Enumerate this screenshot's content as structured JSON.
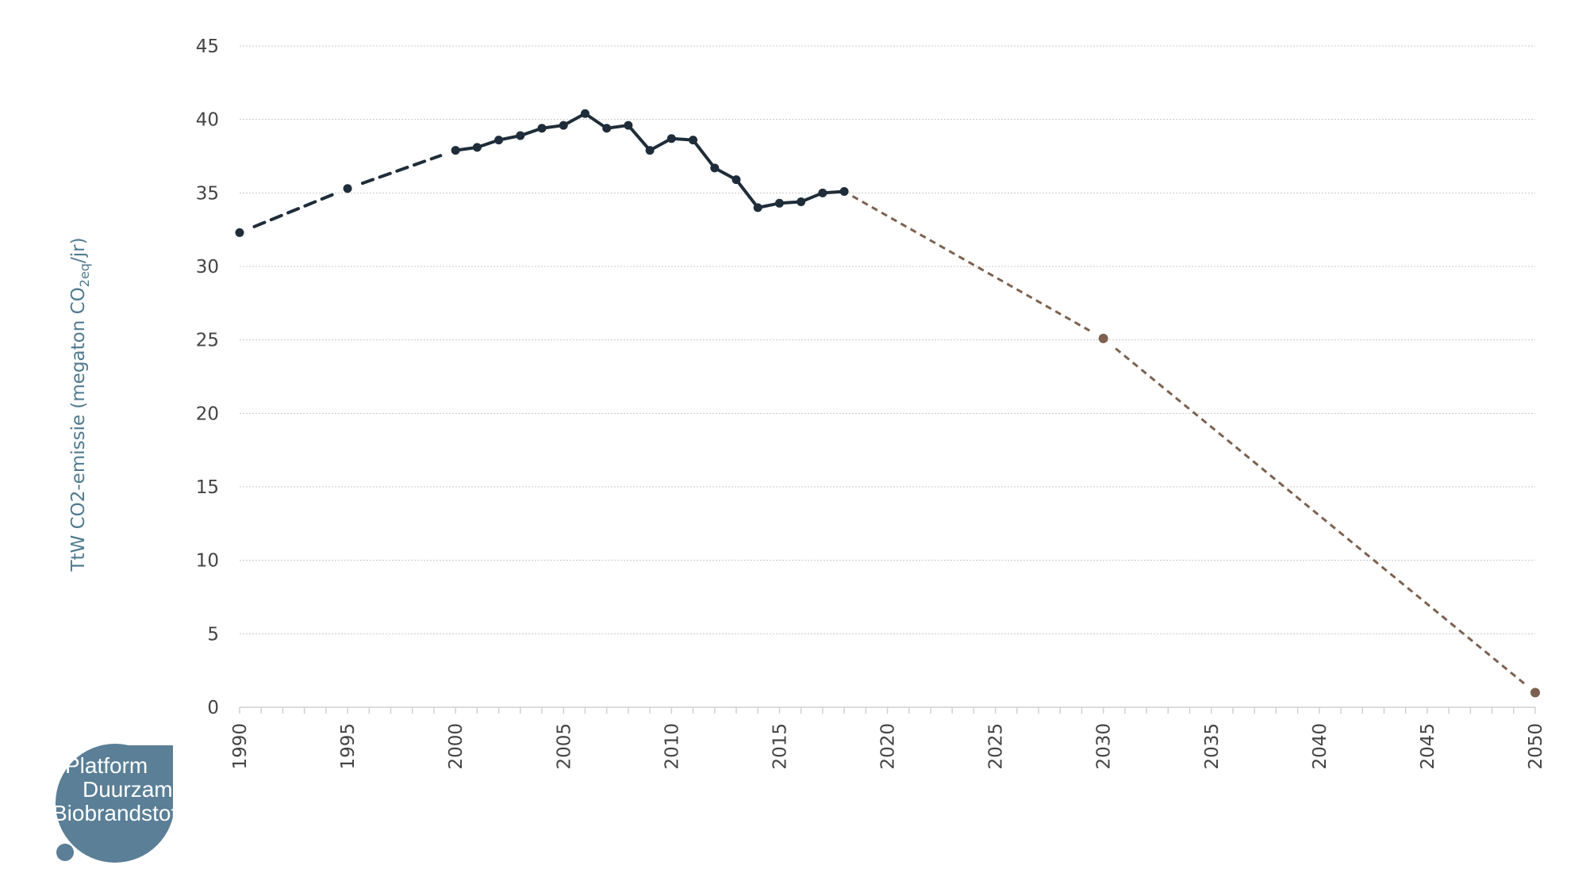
{
  "chart_data": {
    "type": "line",
    "title": "",
    "xlabel": "",
    "ylabel": "TtW CO2-emissie (megaton CO",
    "ylabel_sub": "2eq",
    "ylabel_suffix": "/jr)",
    "xlim": [
      1990,
      2050
    ],
    "ylim": [
      0,
      45
    ],
    "x_ticks": [
      "1990",
      "1995",
      "2000",
      "2005",
      "2010",
      "2015",
      "2020",
      "2025",
      "2030",
      "2035",
      "2040",
      "2045",
      "2050"
    ],
    "y_ticks": [
      "0",
      "5",
      "10",
      "15",
      "20",
      "25",
      "30",
      "35",
      "40",
      "45"
    ],
    "grid": true,
    "legend": "none",
    "series": [
      {
        "style": "solid-dashed-gaps",
        "color": "#1f2d3a",
        "x": [
          1990,
          1995,
          2000,
          2001,
          2002,
          2003,
          2004,
          2005,
          2006,
          2007,
          2008,
          2009,
          2010,
          2011,
          2012,
          2013,
          2014,
          2015,
          2016,
          2017,
          2018
        ],
        "y": [
          32.3,
          35.3,
          37.9,
          38.1,
          38.6,
          38.9,
          39.4,
          39.6,
          40.4,
          39.4,
          39.6,
          37.9,
          38.7,
          38.6,
          36.7,
          35.9,
          34.0,
          34.3,
          34.4,
          35.0,
          35.1
        ]
      },
      {
        "style": "dashed",
        "color": "#7d6150",
        "x": [
          2018,
          2030,
          2050
        ],
        "y": [
          35.1,
          25.1,
          1.0
        ]
      }
    ]
  },
  "logo": {
    "line1": "Platform",
    "line2": "Duurzame",
    "line3": "Biobrandstoffen",
    "color": "#5a7f97"
  }
}
